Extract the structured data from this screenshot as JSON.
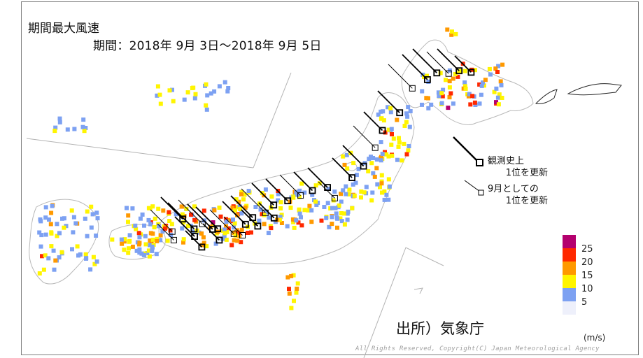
{
  "title": "期間最大風速",
  "period": "期間：2018年 9月 3日～2018年 9月 5日",
  "source": "出所）気象庁",
  "copyright": "All Rights Reserved, Copyright(C) Japan Meteorological Agency",
  "markers": {
    "record_all_time": {
      "line1": "観測史上",
      "line2": "1位を更新"
    },
    "record_september": {
      "line1": "9月としての",
      "line2": "1位を更新"
    }
  },
  "legend": {
    "unit": "(m/s)",
    "ticks": [
      "25",
      "20",
      "15",
      "10",
      "5"
    ],
    "colors": [
      "#b4006e",
      "#ff2800",
      "#ff9900",
      "#fff500",
      "#7da1f2",
      "#eef0fb"
    ]
  },
  "station_colors": {
    "lt5": "#eef0fb",
    "c5_10": "#7da1f2",
    "c10_15": "#fff500",
    "c15_20": "#ff9900",
    "c20_25": "#ff2800",
    "ge25": "#b4006e"
  }
}
